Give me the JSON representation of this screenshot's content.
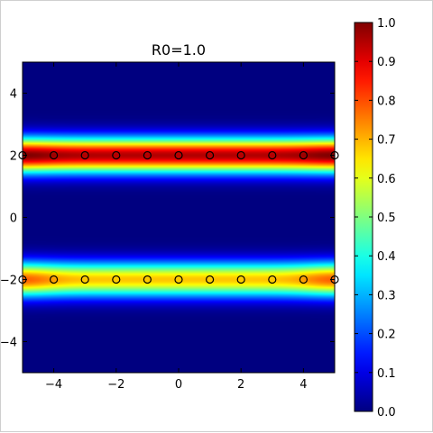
{
  "chart_data": [
    {
      "type": "heatmap",
      "title": "R0=1.0",
      "xlabel": "",
      "ylabel": "",
      "xlim": [
        -5,
        5
      ],
      "ylim": [
        -5,
        5
      ],
      "colormap": "jet",
      "xticks": [
        -4,
        -2,
        0,
        2,
        4
      ],
      "yticks": [
        -4,
        -2,
        0,
        2,
        4
      ],
      "xtick_labels": [
        "−4",
        "−2",
        "0",
        "2",
        "4"
      ],
      "ytick_labels": [
        "−4",
        "−2",
        "0",
        "2",
        "4"
      ],
      "grid": false,
      "bands": [
        {
          "y": 2,
          "peak_value": 1.0,
          "end_value": 1.0,
          "mid_value": 0.95,
          "halfwidth": 0.7
        },
        {
          "y": -2,
          "peak_value": 0.72,
          "end_value": 0.78,
          "mid_value": 0.68,
          "halfwidth": 0.7
        }
      ],
      "markers": {
        "shape": "open-circle",
        "points": [
          {
            "x": -5,
            "y": 2
          },
          {
            "x": -4,
            "y": 2
          },
          {
            "x": -3,
            "y": 2
          },
          {
            "x": -2,
            "y": 2
          },
          {
            "x": -1,
            "y": 2
          },
          {
            "x": 0,
            "y": 2
          },
          {
            "x": 1,
            "y": 2
          },
          {
            "x": 2,
            "y": 2
          },
          {
            "x": 3,
            "y": 2
          },
          {
            "x": 4,
            "y": 2
          },
          {
            "x": 5,
            "y": 2
          },
          {
            "x": -5,
            "y": -2
          },
          {
            "x": -4,
            "y": -2
          },
          {
            "x": -3,
            "y": -2
          },
          {
            "x": -2,
            "y": -2
          },
          {
            "x": -1,
            "y": -2
          },
          {
            "x": 0,
            "y": -2
          },
          {
            "x": 1,
            "y": -2
          },
          {
            "x": 2,
            "y": -2
          },
          {
            "x": 3,
            "y": -2
          },
          {
            "x": 4,
            "y": -2
          },
          {
            "x": 5,
            "y": -2
          }
        ]
      }
    },
    {
      "type": "colorbar",
      "colormap": "jet",
      "range": [
        0.0,
        1.0
      ],
      "ticks": [
        0.0,
        0.1,
        0.2,
        0.3,
        0.4,
        0.5,
        0.6,
        0.7,
        0.8,
        0.9,
        1.0
      ],
      "tick_labels": [
        "0.0",
        "0.1",
        "0.2",
        "0.3",
        "0.4",
        "0.5",
        "0.6",
        "0.7",
        "0.8",
        "0.9",
        "1.0"
      ]
    }
  ]
}
